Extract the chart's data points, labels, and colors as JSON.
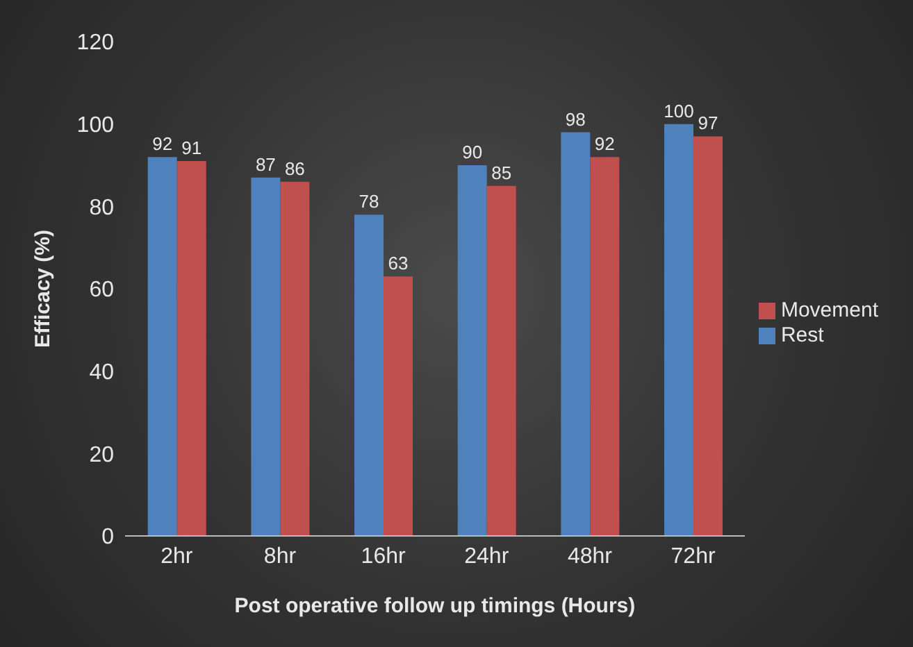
{
  "chart_data": {
    "type": "bar",
    "xlabel": "Post operative follow up timings (Hours)",
    "ylabel": "Efficacy (%)",
    "categories": [
      "2hr",
      "8hr",
      "16hr",
      "24hr",
      "48hr",
      "72hr"
    ],
    "series": [
      {
        "name": "Rest",
        "color": "#4f81bd",
        "values": [
          92,
          87,
          78,
          90,
          98,
          100
        ]
      },
      {
        "name": "Movement",
        "color": "#c0504d",
        "values": [
          91,
          86,
          63,
          85,
          92,
          97
        ]
      }
    ],
    "ylim": [
      0,
      120
    ],
    "yticks": [
      0,
      20,
      40,
      60,
      80,
      100,
      120
    ],
    "grid": false,
    "legend": "right",
    "data_labels": true
  }
}
